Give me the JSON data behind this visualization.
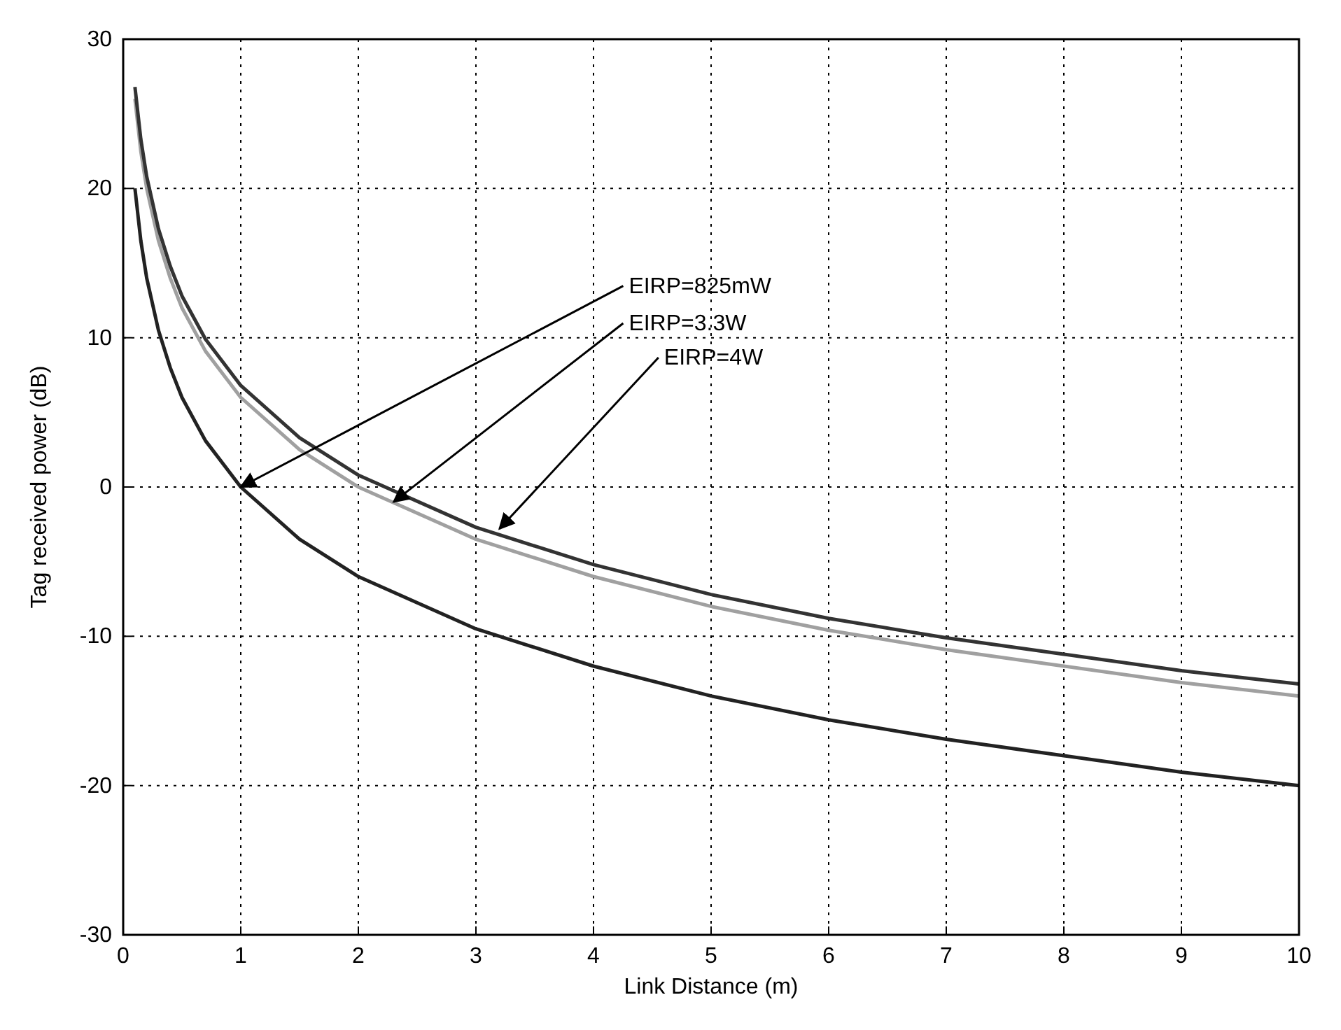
{
  "chart_data": {
    "type": "line",
    "xlabel": "Link Distance (m)",
    "ylabel": "Tag received power (dB)",
    "x": [
      0.1,
      0.15,
      0.2,
      0.3,
      0.4,
      0.5,
      0.7,
      1,
      1.5,
      2,
      3,
      4,
      5,
      6,
      7,
      8,
      9,
      10
    ],
    "series": [
      {
        "color": "#222222",
        "values": [
          20,
          16.5,
          14,
          10.5,
          8,
          6,
          3.1,
          0,
          -3.5,
          -6,
          -9.5,
          -12,
          -14,
          -15.6,
          -16.9,
          -18,
          -19.1,
          -20
        ]
      },
      {
        "color": "#a0a0a0",
        "values": [
          26,
          22.5,
          20,
          16.5,
          14,
          12,
          9.1,
          6,
          2.5,
          0,
          -3.5,
          -6,
          -8,
          -9.6,
          -10.9,
          -12,
          -13.1,
          -14
        ]
      },
      {
        "color": "#333333",
        "values": [
          26.8,
          23.3,
          20.8,
          17.3,
          14.8,
          12.8,
          9.9,
          6.8,
          3.3,
          0.8,
          -2.7,
          -5.2,
          -7.2,
          -8.8,
          -10.1,
          -11.2,
          -12.3,
          -13.2
        ]
      }
    ],
    "xlim": [
      0,
      10
    ],
    "ylim": [
      -30,
      30
    ],
    "xticks": [
      0,
      1,
      2,
      3,
      4,
      5,
      6,
      7,
      8,
      9,
      10
    ],
    "yticks": [
      -30,
      -20,
      -10,
      0,
      10,
      20,
      30
    ],
    "grid": true,
    "marker": "none",
    "line_style": "solid",
    "annotations": [
      {
        "text": "EIRP=825mW",
        "x": 1,
        "y": 0
      },
      {
        "text": "EIRP=3.3W",
        "x": 2.3,
        "y": -1
      },
      {
        "text": "EIRP=4W",
        "x": 3.2,
        "y": -2.8
      }
    ]
  }
}
